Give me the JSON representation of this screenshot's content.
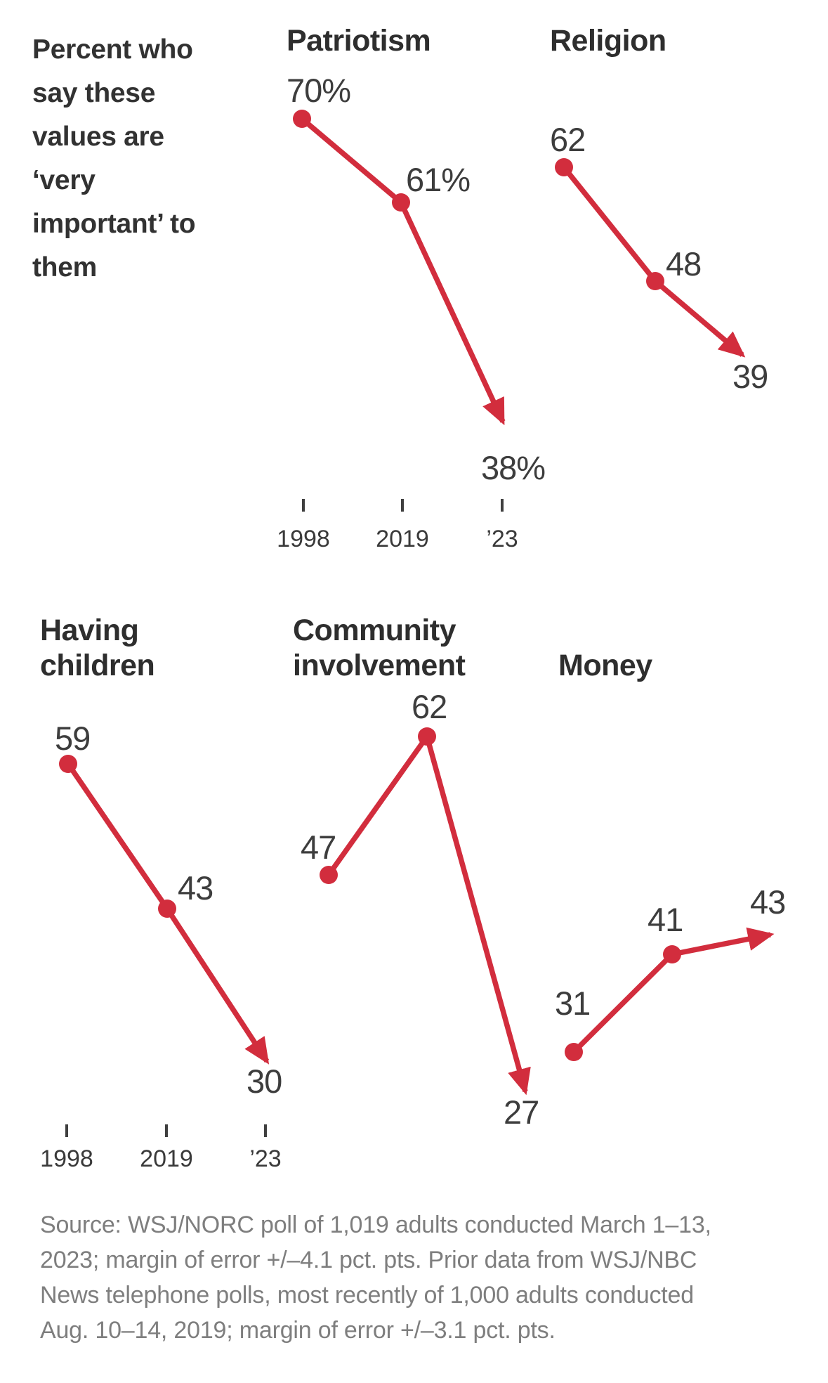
{
  "figure": {
    "heading_lines": [
      "Percent who",
      "say these",
      "values are",
      "‘very",
      "important’ to",
      "them"
    ],
    "heading_text": "Percent who say these values are ‘very important’ to them"
  },
  "chart_data": {
    "type": "line",
    "layout": "small-multiples",
    "title": "Percent who say these values are ‘very important’ to them",
    "x_categories": [
      "1998",
      "2019",
      "’23"
    ],
    "x_years": [
      1998,
      2019,
      2023
    ],
    "line_color": "#d22d3d",
    "grid": false,
    "legend": "none",
    "marker_style": "red dots on earlier points, red arrowhead pointing to final value",
    "series": [
      {
        "id": "patriotism",
        "name": "Patriotism",
        "values": [
          70,
          61,
          38
        ],
        "value_labels": [
          "70%",
          "61%",
          "38%"
        ]
      },
      {
        "id": "religion",
        "name": "Religion",
        "values": [
          62,
          48,
          39
        ],
        "value_labels": [
          "62",
          "48",
          "39"
        ]
      },
      {
        "id": "having-children",
        "name": "Having children",
        "values": [
          59,
          43,
          30
        ],
        "value_labels": [
          "59",
          "43",
          "30"
        ]
      },
      {
        "id": "community-involvement",
        "name": "Community involvement",
        "values": [
          47,
          62,
          27
        ],
        "value_labels": [
          "47",
          "62",
          "27"
        ]
      },
      {
        "id": "money",
        "name": "Money",
        "values": [
          31,
          41,
          43
        ],
        "value_labels": [
          "31",
          "41",
          "43"
        ]
      }
    ]
  },
  "axes": [
    {
      "id": "top-row-axis",
      "tick_labels": [
        "1998",
        "2019",
        "’23"
      ]
    },
    {
      "id": "bottom-row-axis",
      "tick_labels": [
        "1998",
        "2019",
        "’23"
      ]
    }
  ],
  "source": {
    "lines": [
      "Source: WSJ/NORC poll of 1,019 adults conducted March 1–13,",
      "2023; margin of error +/–4.1 pct. pts. Prior data from WSJ/NBC",
      "News telephone polls, most recently of 1,000 adults conducted",
      "Aug. 10–14, 2019; margin of error +/–3.1 pct. pts."
    ],
    "text": "Source: WSJ/NORC poll of 1,019 adults conducted March 1–13, 2023; margin of error +/–4.1 pct. pts. Prior data from WSJ/NBC News telephone polls, most recently of 1,000 adults conducted Aug. 10–14, 2019; margin of error +/–3.1 pct. pts."
  },
  "colors": {
    "line": "#d22d3d",
    "title_text": "#2e2e2e",
    "value_text": "#3d3d3d",
    "axis_text": "#3a3a3a",
    "source_text": "#7e7e7e",
    "background": "#ffffff"
  }
}
